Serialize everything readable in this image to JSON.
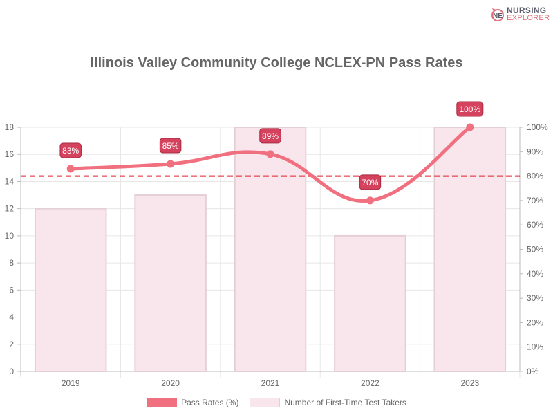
{
  "brand": {
    "line1": "NURSING",
    "line2": "EXPLORER"
  },
  "chart_data": {
    "type": "bar+line",
    "title": "Illinois Valley Community College NCLEX-PN Pass Rates",
    "categories": [
      "2019",
      "2020",
      "2021",
      "2022",
      "2023"
    ],
    "series": [
      {
        "name": "Pass Rates (%)",
        "type": "line",
        "axis": "right",
        "values": [
          83,
          85,
          89,
          70,
          100
        ],
        "labels": [
          "83%",
          "85%",
          "89%",
          "70%",
          "100%"
        ],
        "color": "#f07080"
      },
      {
        "name": "Number of First-Time Test Takers",
        "type": "bar",
        "axis": "left",
        "values": [
          12,
          13,
          18,
          10,
          18
        ],
        "color": "#f9e6ec"
      }
    ],
    "reference_line": {
      "value": 80,
      "axis": "right",
      "style": "dashed",
      "color": "#e0202a"
    },
    "y_left": {
      "range": [
        0,
        18
      ],
      "ticks": [
        "0",
        "2",
        "4",
        "6",
        "8",
        "10",
        "12",
        "14",
        "16",
        "18"
      ]
    },
    "y_right": {
      "range": [
        0,
        100
      ],
      "ticks": [
        "0%",
        "10%",
        "20%",
        "30%",
        "40%",
        "50%",
        "60%",
        "70%",
        "80%",
        "90%",
        "100%"
      ]
    },
    "xlabel": "",
    "ylabel": "",
    "legend_position": "bottom",
    "grid": true
  },
  "legend": {
    "line_label": "Pass Rates (%)",
    "bar_label": "Number of First-Time Test Takers"
  }
}
